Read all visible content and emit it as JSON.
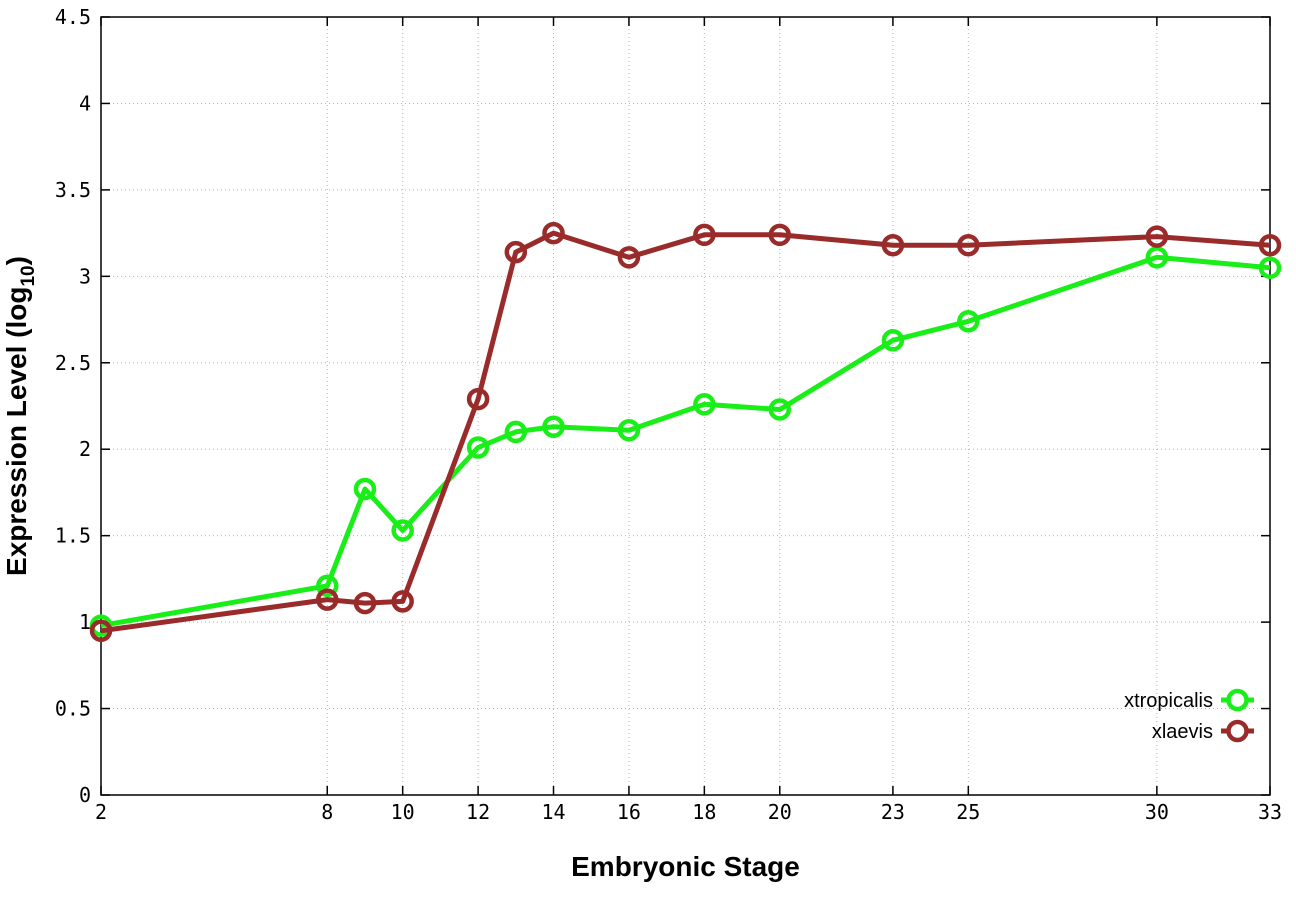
{
  "chart_data": {
    "type": "line",
    "xlabel": "Embryonic Stage",
    "ylabel_main": "Expression Level (log",
    "ylabel_sub": "10",
    "ylabel_close": ")",
    "xlim": [
      2,
      33
    ],
    "ylim": [
      0,
      4.5
    ],
    "x_ticks": [
      2,
      8,
      10,
      12,
      14,
      16,
      18,
      20,
      23,
      25,
      30,
      33
    ],
    "y_ticks": [
      0,
      0.5,
      1,
      1.5,
      2,
      2.5,
      3,
      3.5,
      4,
      4.5
    ],
    "y_tick_labels": [
      "0",
      "0.5",
      "1",
      "1.5",
      "2",
      "2.5",
      "3",
      "3.5",
      "4",
      "4.5"
    ],
    "grid": true,
    "legend_position": "bottom-right",
    "x": [
      2,
      8,
      9,
      10,
      12,
      13,
      14,
      16,
      18,
      20,
      23,
      25,
      30,
      33
    ],
    "series": [
      {
        "name": "xtropicalis",
        "color": "#19ee19",
        "values": [
          0.98,
          1.21,
          1.77,
          1.53,
          2.01,
          2.1,
          2.13,
          2.11,
          2.26,
          2.23,
          2.63,
          2.74,
          3.11,
          3.05
        ]
      },
      {
        "name": "xlaevis",
        "color": "#9a2b2b",
        "values": [
          0.95,
          1.13,
          1.11,
          1.12,
          2.29,
          3.14,
          3.25,
          3.11,
          3.24,
          3.24,
          3.18,
          3.18,
          3.23,
          3.18
        ]
      }
    ]
  }
}
